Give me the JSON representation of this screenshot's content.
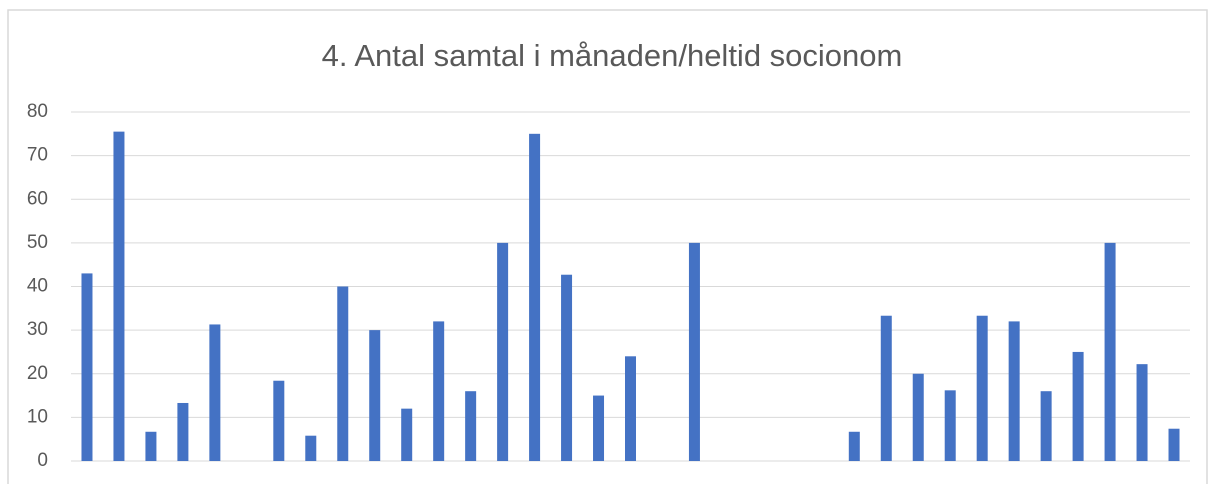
{
  "chart_data": {
    "type": "bar",
    "title": "4. Antal samtal i månaden/heltid socionom",
    "categories": [
      null,
      null,
      null,
      null,
      null,
      null,
      null,
      null,
      null,
      null,
      null,
      null,
      null,
      null,
      null,
      null,
      null,
      null,
      null,
      null,
      null,
      null,
      null,
      null,
      null,
      null,
      null,
      null,
      null,
      null,
      null,
      null,
      null,
      null,
      null
    ],
    "values": [
      43,
      75.5,
      6.7,
      13.3,
      31.3,
      null,
      18.4,
      5.8,
      40,
      30,
      12,
      32,
      16,
      50,
      75,
      42.7,
      15,
      24,
      null,
      50,
      null,
      null,
      null,
      null,
      6.7,
      33.3,
      20,
      16.2,
      33.3,
      32,
      16,
      25,
      50,
      22.2,
      7.4
    ],
    "color": "#4472c4",
    "ylim": [
      0,
      80
    ],
    "yticks": [
      0,
      10,
      20,
      30,
      40,
      50,
      60,
      70,
      80
    ],
    "grid": true
  }
}
